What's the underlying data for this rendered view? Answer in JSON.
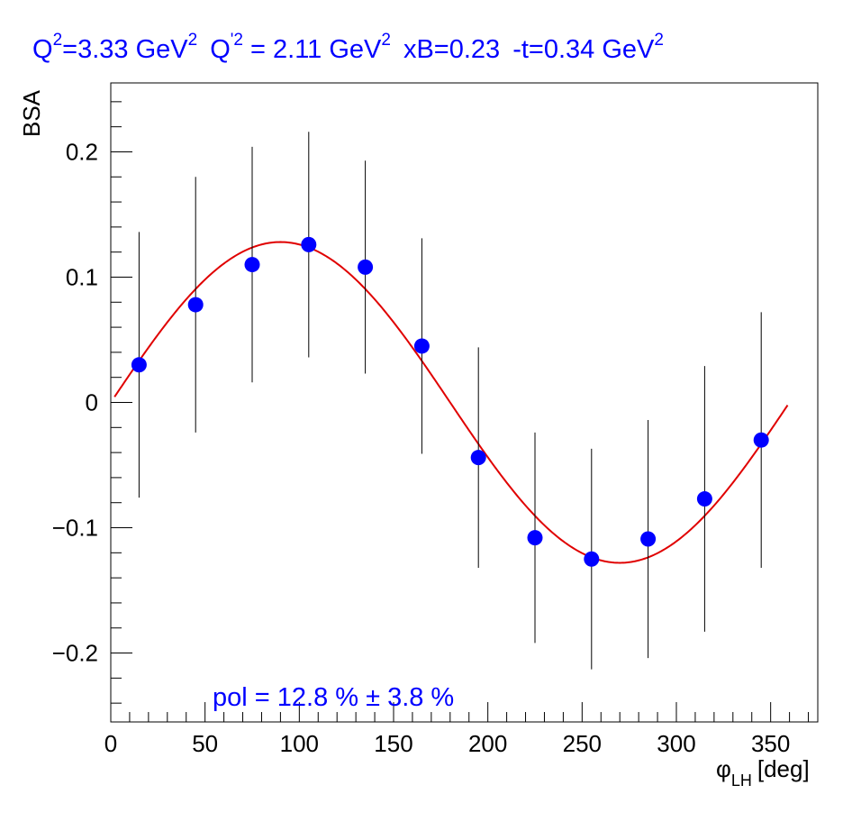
{
  "chart_data": {
    "type": "scatter",
    "title": {
      "q2_label": "Q",
      "q2_sup": "2",
      "q2_value": "=3.33 GeV",
      "q2_unit_sup": "2",
      "qp2_label": "Q",
      "qp2_sup": "'2",
      "qp2_value": " = 2.11 GeV",
      "qp2_unit_sup": "2",
      "xb": "xB=0.23",
      "t_value": "-t=0.34 GeV",
      "t_unit_sup": "2"
    },
    "ylabel": "BSA",
    "xlabel": {
      "symbol": "φ",
      "sub": "LH",
      "unit": "[deg]"
    },
    "xlim": [
      0,
      375
    ],
    "ylim": [
      -0.255,
      0.255
    ],
    "x_ticks": [
      0,
      50,
      100,
      150,
      200,
      250,
      300,
      350
    ],
    "x_tick_labels": [
      "0",
      "50",
      "100",
      "150",
      "200",
      "250",
      "300",
      "350"
    ],
    "y_ticks": [
      -0.2,
      -0.1,
      0,
      0.1,
      0.2
    ],
    "y_tick_labels": [
      "−0.2",
      "−0.1",
      "0",
      "0.1",
      "0.2"
    ],
    "grid": false,
    "series": [
      {
        "marker_color": "#0000ff",
        "x": [
          15,
          45,
          75,
          105,
          135,
          165,
          195,
          225,
          255,
          285,
          315,
          345
        ],
        "y": [
          0.03,
          0.078,
          0.11,
          0.126,
          0.108,
          0.045,
          -0.044,
          -0.108,
          -0.125,
          -0.109,
          -0.077,
          -0.03
        ],
        "y_err": [
          0.106,
          0.102,
          0.094,
          0.09,
          0.085,
          0.086,
          0.088,
          0.084,
          0.088,
          0.095,
          0.106,
          0.102
        ]
      }
    ],
    "fit": {
      "line_color": "#e00000",
      "function": "amplitude * sin(x)",
      "amplitude": 0.128,
      "x_range": [
        2,
        359
      ]
    },
    "annotation": "pol = 12.8 % ± 3.8 %"
  }
}
